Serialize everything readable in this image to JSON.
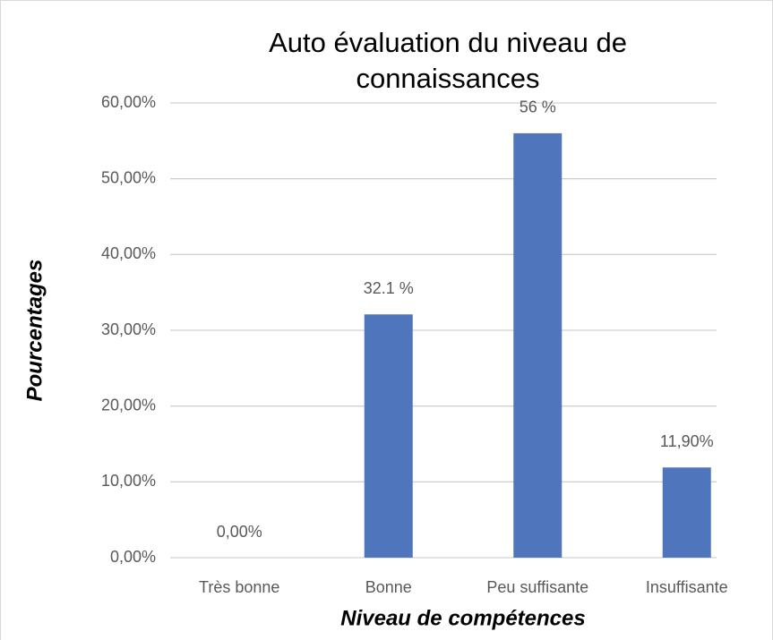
{
  "chart_data": {
    "type": "bar",
    "title": "Auto évaluation du niveau de connaissances",
    "x_label": "Niveau de compétences",
    "y_label": "Pourcentages",
    "categories": [
      "Très bonne",
      "Bonne",
      "Peu suffisante",
      "Insuffisante"
    ],
    "values": [
      0,
      32.1,
      56,
      11.9
    ],
    "value_labels": [
      "0,00%",
      "32.1 %",
      "56 %",
      "11,90%"
    ],
    "color": "#4f75bd",
    "ylim": [
      0,
      60
    ],
    "yticks": [
      {
        "value": 0,
        "label": "0,00%"
      },
      {
        "value": 10,
        "label": "10,00%"
      },
      {
        "value": 20,
        "label": "20,00%"
      },
      {
        "value": 30,
        "label": "30,00%"
      },
      {
        "value": 40,
        "label": "40,00%"
      },
      {
        "value": 50,
        "label": "50,00%"
      },
      {
        "value": 60,
        "label": "60,00%"
      }
    ],
    "grid": true
  }
}
